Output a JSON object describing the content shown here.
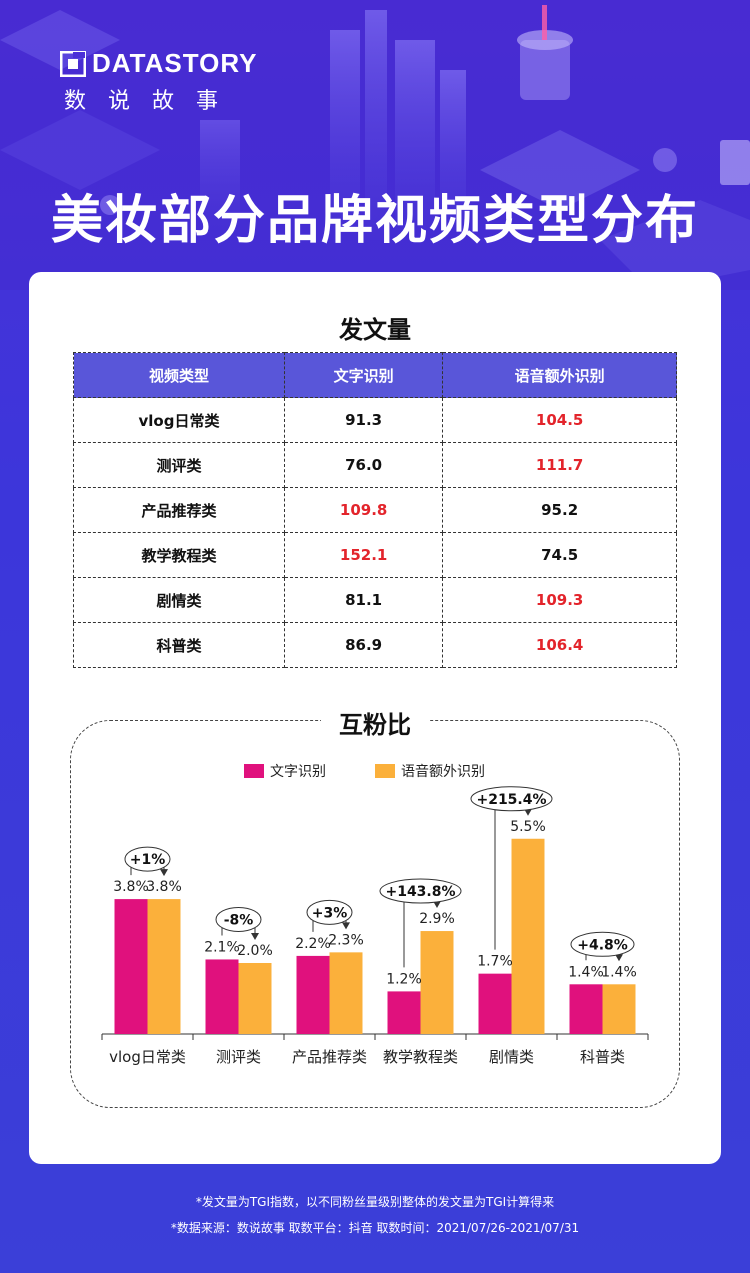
{
  "logo": {
    "brand": "DATASTORY",
    "brand_cn": "数说故事"
  },
  "title": "美妆部分品牌视频类型分布",
  "table_section": {
    "title": "发文量",
    "headers": [
      "视频类型",
      "文字识别",
      "语音额外识别"
    ],
    "rows": [
      {
        "type": "vlog日常类",
        "text": "91.3",
        "voice": "104.5",
        "highlight": "voice"
      },
      {
        "type": "测评类",
        "text": "76.0",
        "voice": "111.7",
        "highlight": "voice"
      },
      {
        "type": "产品推荐类",
        "text": "109.8",
        "voice": "95.2",
        "highlight": "text"
      },
      {
        "type": "教学教程类",
        "text": "152.1",
        "voice": "74.5",
        "highlight": "text"
      },
      {
        "type": "剧情类",
        "text": "81.1",
        "voice": "109.3",
        "highlight": "voice"
      },
      {
        "type": "科普类",
        "text": "86.9",
        "voice": "106.4",
        "highlight": "voice"
      }
    ],
    "highlight_color": "#e3242b"
  },
  "chart_data": {
    "type": "bar",
    "title": "互粉比",
    "categories": [
      "vlog日常类",
      "测评类",
      "产品推荐类",
      "教学教程类",
      "剧情类",
      "科普类"
    ],
    "series": [
      {
        "name": "文字识别",
        "values": [
          3.8,
          2.1,
          2.2,
          1.2,
          1.7,
          1.4
        ],
        "labels": [
          "3.8%",
          "2.1%",
          "2.2%",
          "1.2%",
          "1.7%",
          "1.4%"
        ],
        "color": "#e0117d"
      },
      {
        "name": "语音额外识别",
        "values": [
          3.8,
          2.0,
          2.3,
          2.9,
          5.5,
          1.4
        ],
        "labels": [
          "3.8%",
          "2.0%",
          "2.3%",
          "2.9%",
          "5.5%",
          "1.4%"
        ],
        "color": "#fbb03b"
      }
    ],
    "changes": [
      "+1%",
      "-8%",
      "+3%",
      "+143.8%",
      "+215.4%",
      "+4.8%"
    ],
    "ylim": [
      0,
      6
    ],
    "legend": "top-center",
    "grid": false
  },
  "footnotes": [
    "*发文量为TGI指数，以不同粉丝量级别整体的发文量为TGI计算得来",
    "*数据来源：数说故事    取数平台：抖音    取数时间：2021/07/26-2021/07/31"
  ]
}
